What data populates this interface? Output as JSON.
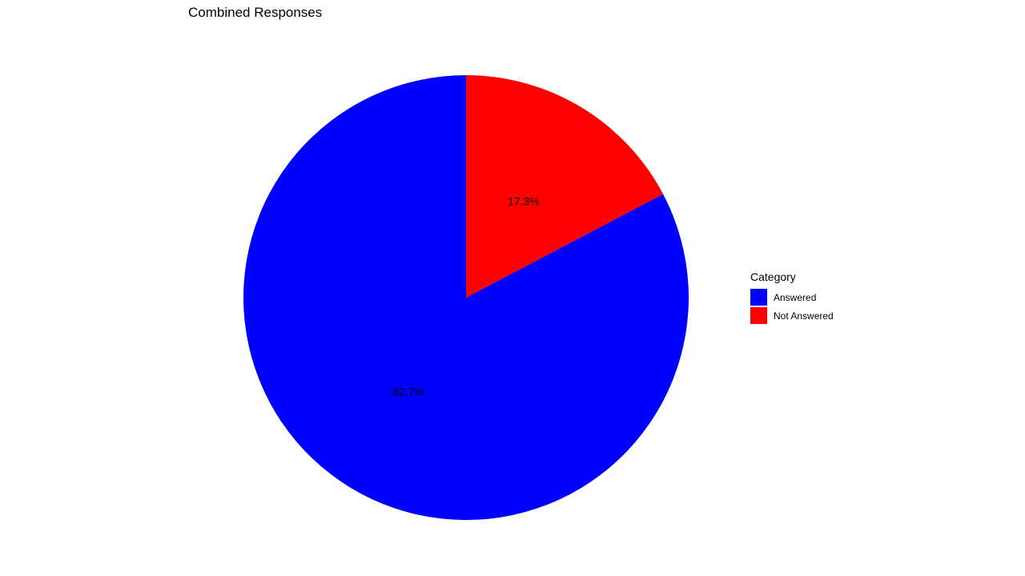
{
  "chart_data": {
    "type": "pie",
    "title": "Combined Responses",
    "legend": {
      "title": "Category",
      "placement": "right"
    },
    "slices": [
      {
        "name": "Answered",
        "value": 82.7,
        "label": "82.7%",
        "color": "#0000FF"
      },
      {
        "name": "Not Answered",
        "value": 17.3,
        "label": "17.3%",
        "color": "#FF0000"
      }
    ]
  }
}
